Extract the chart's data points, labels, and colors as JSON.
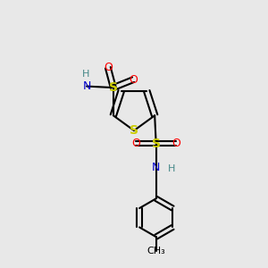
{
  "background_color": "#e8e8e8",
  "fig_size": [
    3.0,
    3.0
  ],
  "dpi": 100,
  "colors": {
    "S": "#cccc00",
    "N": "#0000cc",
    "O": "#ff0000",
    "C": "#000000",
    "H": "#448888",
    "bond": "#000000"
  },
  "layout": {
    "xlim": [
      0.0,
      1.0
    ],
    "ylim": [
      0.0,
      1.0
    ]
  }
}
